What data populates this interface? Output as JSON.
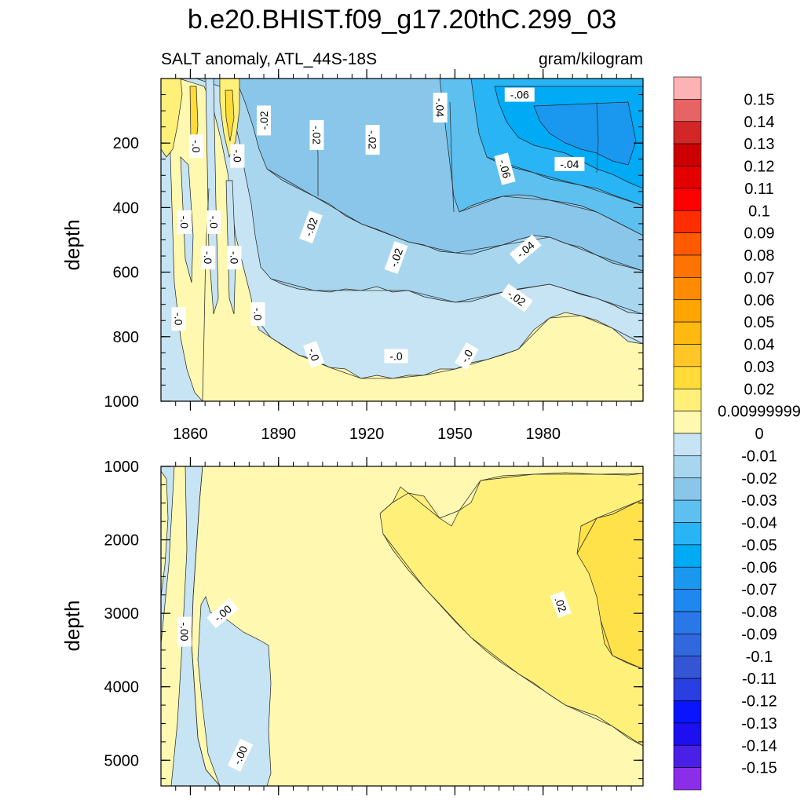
{
  "chart_data": {
    "type": "heatmap",
    "title": "b.e20.BHIST.f09_g17.20thC.299_03",
    "left_subtitle": "SALT anomaly, ATL_44S-18S",
    "right_subtitle": "gram/kilogram",
    "panels": [
      {
        "id": "upper",
        "ylabel": "depth",
        "yrange": [
          0,
          1000
        ],
        "yticks": [
          200,
          400,
          600,
          800,
          1000
        ],
        "xrange": [
          1850,
          2014
        ],
        "xticks": [
          1860,
          1890,
          1920,
          1950,
          1980
        ],
        "contour_labels": [
          {
            "text": "-.06",
            "year": 1972,
            "depth": 50,
            "rot": 0
          },
          {
            "text": "-.04",
            "year": 1945,
            "depth": 90,
            "rot": 90
          },
          {
            "text": "-.02",
            "year": 1885,
            "depth": 130,
            "rot": -90
          },
          {
            "text": "-.02",
            "year": 1903,
            "depth": 175,
            "rot": 90
          },
          {
            "text": "-.02",
            "year": 1922,
            "depth": 190,
            "rot": 90
          },
          {
            "text": "-.0",
            "year": 1862,
            "depth": 210,
            "rot": 90
          },
          {
            "text": "-.0",
            "year": 1876,
            "depth": 240,
            "rot": 90
          },
          {
            "text": "-.06",
            "year": 1967,
            "depth": 280,
            "rot": 75
          },
          {
            "text": "-.04",
            "year": 1989,
            "depth": 265,
            "rot": 0
          },
          {
            "text": "-.02",
            "year": 1901,
            "depth": 460,
            "rot": -70
          },
          {
            "text": "-.0",
            "year": 1858,
            "depth": 445,
            "rot": 90
          },
          {
            "text": "-.0",
            "year": 1868,
            "depth": 445,
            "rot": 90
          },
          {
            "text": "-.02",
            "year": 1930,
            "depth": 555,
            "rot": -70
          },
          {
            "text": "-.04",
            "year": 1974,
            "depth": 530,
            "rot": -40
          },
          {
            "text": "-.0",
            "year": 1866,
            "depth": 555,
            "rot": 90
          },
          {
            "text": "-.0",
            "year": 1875,
            "depth": 555,
            "rot": 90
          },
          {
            "text": "-.02",
            "year": 1971,
            "depth": 680,
            "rot": 35
          },
          {
            "text": "-.0",
            "year": 1856,
            "depth": 745,
            "rot": 90
          },
          {
            "text": "-.0",
            "year": 1883,
            "depth": 730,
            "rot": 90
          },
          {
            "text": "-.0",
            "year": 1902,
            "depth": 855,
            "rot": 70
          },
          {
            "text": "-.0",
            "year": 1930,
            "depth": 860,
            "rot": 0
          },
          {
            "text": "-.0",
            "year": 1954,
            "depth": 860,
            "rot": -60
          }
        ]
      },
      {
        "id": "lower",
        "ylabel": "depth",
        "yrange": [
          1000,
          5350
        ],
        "yticks": [
          1000,
          2000,
          3000,
          4000,
          5000
        ],
        "xrange": [
          1850,
          2014
        ],
        "xticks": [
          1860,
          1890,
          1920,
          1950,
          1980
        ],
        "contour_labels": [
          {
            "text": "-.00",
            "year": 1871,
            "depth": 3000,
            "rot": -40
          },
          {
            "text": "-.00",
            "year": 1858,
            "depth": 3250,
            "rot": 90
          },
          {
            "text": ".02",
            "year": 1986,
            "depth": 2880,
            "rot": 70
          },
          {
            "text": "-.00",
            "year": 1877,
            "depth": 4930,
            "rot": -65
          }
        ]
      }
    ],
    "colorbar": {
      "labels": [
        "0.15",
        "0.14",
        "0.13",
        "0.12",
        "0.11",
        "0.1",
        "0.09",
        "0.08",
        "0.07",
        "0.06",
        "0.05",
        "0.04",
        "0.03",
        "0.02",
        "0.00999999",
        "0",
        "-0.01",
        "-0.02",
        "-0.03",
        "-0.04",
        "-0.05",
        "-0.06",
        "-0.07",
        "-0.08",
        "-0.09",
        "-0.1",
        "-0.11",
        "-0.12",
        "-0.13",
        "-0.14",
        "-0.15"
      ],
      "colors": [
        "#fdb3b3",
        "#e86464",
        "#d12727",
        "#cc0000",
        "#e50000",
        "#ff0000",
        "#ff2d00",
        "#ff5a00",
        "#ff7300",
        "#ff8c00",
        "#ffa500",
        "#ffb90f",
        "#ffc627",
        "#ffdc37",
        "#fff07a",
        "#fff8b0",
        "#c6e4f3",
        "#a8d6ee",
        "#8ac6ea",
        "#5ec0ef",
        "#28b4f5",
        "#00aaf5",
        "#1a98f0",
        "#1e88ef",
        "#2878e8",
        "#3268dd",
        "#3455d4",
        "#2a3fe0",
        "#0a14ff",
        "#1c10f0",
        "#4a20e6",
        "#8a2ee8"
      ]
    }
  }
}
